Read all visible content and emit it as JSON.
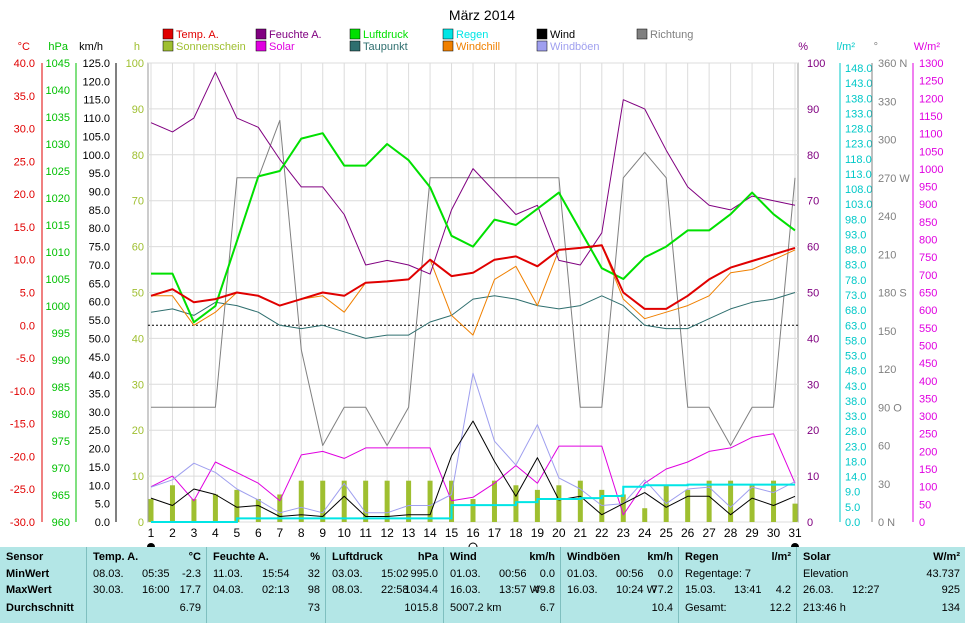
{
  "title": "März 2014",
  "colors": {
    "temp": "#e00000",
    "humidity": "#800080",
    "pressure": "#00e000",
    "rain": "#00e5e5",
    "wind": "#000000",
    "winddir": "#808080",
    "sunshine": "#9fbf30",
    "solar": "#e000e0",
    "dewpoint": "#2f6f6f",
    "windchill": "#f08000",
    "gusts": "#9f9fef",
    "table_bg": "#b3e6e6"
  },
  "axes": {
    "temp": {
      "unit": "°C",
      "ticks": [
        "40.0",
        "35.0",
        "30.0",
        "25.0",
        "20.0",
        "15.0",
        "10.0",
        "5.0",
        "0.0",
        "-5.0",
        "-10.0",
        "-15.0",
        "-20.0",
        "-25.0",
        "-30.0"
      ]
    },
    "pressure": {
      "unit": "hPa",
      "ticks": [
        "1045",
        "1040",
        "1035",
        "1030",
        "1025",
        "1020",
        "1015",
        "1010",
        "1005",
        "1000",
        "995",
        "990",
        "985",
        "980",
        "975",
        "970",
        "965",
        "960"
      ]
    },
    "wind": {
      "unit": "km/h",
      "ticks": [
        "125.0",
        "120.0",
        "115.0",
        "110.0",
        "105.0",
        "100.0",
        "95.0",
        "90.0",
        "85.0",
        "80.0",
        "75.0",
        "70.0",
        "65.0",
        "60.0",
        "55.0",
        "50.0",
        "45.0",
        "40.0",
        "35.0",
        "30.0",
        "25.0",
        "20.0",
        "15.0",
        "10.0",
        "5.0",
        "0.0"
      ]
    },
    "sunshine": {
      "unit": "h",
      "ticks": [
        "100",
        "90",
        "80",
        "70",
        "60",
        "50",
        "40",
        "30",
        "20",
        "10",
        "0"
      ]
    },
    "humidity": {
      "unit": "%",
      "ticks": [
        "100",
        "90",
        "80",
        "70",
        "60",
        "50",
        "40",
        "30",
        "20",
        "10",
        "0"
      ]
    },
    "rain": {
      "unit": "l/m²",
      "ticks": [
        "148.0",
        "143.0",
        "138.0",
        "133.0",
        "128.0",
        "123.0",
        "118.0",
        "113.0",
        "108.0",
        "103.0",
        "98.0",
        "93.0",
        "88.0",
        "83.0",
        "78.0",
        "73.0",
        "68.0",
        "63.0",
        "58.0",
        "53.0",
        "48.0",
        "43.0",
        "38.0",
        "33.0",
        "28.0",
        "23.0",
        "18.0",
        "14.0",
        "9.0",
        "5.0",
        "0.0"
      ]
    },
    "direction": {
      "unit": "°",
      "ticks": [
        "360 N",
        "330",
        "300",
        "270 W",
        "240",
        "210",
        "180 S",
        "150",
        "120",
        "90 O",
        "60",
        "30",
        "0 N"
      ]
    },
    "solar": {
      "unit": "W/m²",
      "ticks": [
        "1300",
        "1250",
        "1200",
        "1150",
        "1100",
        "1050",
        "1000",
        "950",
        "900",
        "850",
        "800",
        "750",
        "700",
        "650",
        "600",
        "550",
        "500",
        "450",
        "400",
        "350",
        "300",
        "250",
        "200",
        "150",
        "100",
        "50",
        "0"
      ]
    },
    "x_ticks": [
      "1",
      "2",
      "3",
      "4",
      "5",
      "6",
      "7",
      "8",
      "9",
      "10",
      "11",
      "12",
      "13",
      "14",
      "15",
      "16",
      "17",
      "18",
      "19",
      "20",
      "21",
      "22",
      "23",
      "24",
      "25",
      "26",
      "27",
      "28",
      "29",
      "30",
      "31"
    ]
  },
  "legend": [
    {
      "label": "Temp. A.",
      "color": "#e00000"
    },
    {
      "label": "Feuchte A.",
      "color": "#800080"
    },
    {
      "label": "Luftdruck",
      "color": "#00e000"
    },
    {
      "label": "Regen",
      "color": "#00e5e5"
    },
    {
      "label": "Wind",
      "color": "#000000"
    },
    {
      "label": "Richtung",
      "color": "#808080"
    },
    {
      "label": "Sonnenschein",
      "color": "#9fbf30"
    },
    {
      "label": "Solar",
      "color": "#e000e0"
    },
    {
      "label": "Taupunkt",
      "color": "#2f6f6f"
    },
    {
      "label": "Windchill",
      "color": "#f08000"
    },
    {
      "label": "Windböen",
      "color": "#9f9fef"
    }
  ],
  "chart_data": {
    "type": "line",
    "title": "März 2014",
    "x": [
      1,
      2,
      3,
      4,
      5,
      6,
      7,
      8,
      9,
      10,
      11,
      12,
      13,
      14,
      15,
      16,
      17,
      18,
      19,
      20,
      21,
      22,
      23,
      24,
      25,
      26,
      27,
      28,
      29,
      30,
      31
    ],
    "series": [
      {
        "name": "Temp. A.",
        "unit": "°C",
        "values": [
          4.5,
          5.5,
          3.5,
          4.0,
          5.0,
          4.5,
          3.0,
          4.0,
          5.0,
          4.5,
          6.5,
          6.7,
          7.0,
          10.0,
          7.5,
          8.0,
          10.0,
          10.5,
          9.0,
          11.5,
          11.8,
          12.2,
          5.0,
          2.5,
          2.5,
          4.5,
          7.0,
          8.8,
          9.8,
          10.8,
          11.8
        ]
      },
      {
        "name": "Feuchte A.",
        "unit": "%",
        "values": [
          87,
          85,
          88,
          98,
          88,
          86,
          79,
          73,
          73,
          67,
          56,
          57,
          56,
          54,
          68,
          77,
          72,
          67,
          69,
          57,
          56,
          63,
          92,
          90,
          81,
          73,
          69,
          68,
          71,
          70,
          69
        ]
      },
      {
        "name": "Luftdruck",
        "unit": "hPa",
        "values": [
          1006,
          1006,
          997,
          1000,
          1012,
          1024,
          1025,
          1031,
          1032,
          1026,
          1026,
          1030,
          1027,
          1022,
          1013,
          1011,
          1016,
          1015,
          1018,
          1021,
          1014,
          1007,
          1005,
          1009,
          1011,
          1014,
          1014,
          1017,
          1021,
          1017,
          1014
        ]
      },
      {
        "name": "Regen",
        "unit": "l/m²",
        "values": [
          0,
          0,
          0,
          0,
          1.2,
          1.2,
          1.2,
          1.2,
          1.2,
          1.2,
          1.2,
          1.2,
          1.2,
          1.2,
          5.5,
          5.5,
          5.5,
          6.5,
          7.5,
          7.5,
          7.8,
          8.5,
          11.5,
          12.0,
          12.0,
          12.2,
          12.2,
          12.2,
          12.2,
          12.2,
          12.2
        ]
      },
      {
        "name": "Wind",
        "unit": "km/h",
        "values": [
          6.5,
          4.5,
          9.0,
          7.5,
          4.0,
          4.5,
          1.5,
          2.0,
          1.5,
          7.0,
          1.5,
          1.5,
          2.0,
          2.0,
          18.0,
          27.5,
          16.5,
          7.0,
          17.5,
          6.0,
          7.0,
          2.0,
          5.0,
          8.0,
          4.0,
          7.0,
          7.0,
          2.0,
          6.5,
          4.5,
          7.0
        ]
      },
      {
        "name": "Windböen",
        "unit": "km/h",
        "values": [
          9.5,
          11.5,
          16.0,
          13.5,
          9.0,
          6.0,
          2.5,
          4.0,
          2.5,
          10.5,
          2.5,
          2.5,
          4.5,
          4.5,
          7.5,
          40.5,
          22.0,
          15.5,
          26.5,
          12.0,
          9.0,
          4.5,
          5.0,
          11.5,
          5.0,
          9.0,
          9.5,
          4.0,
          9.5,
          8.0,
          11.0
        ]
      },
      {
        "name": "Taupunkt",
        "unit": "°C",
        "values": [
          2.0,
          2.5,
          1.5,
          3.5,
          3.0,
          2.0,
          0.0,
          -0.5,
          0.0,
          -1.0,
          -2.0,
          -1.5,
          -1.5,
          0.5,
          1.5,
          4.0,
          4.5,
          4.0,
          3.0,
          2.5,
          3.0,
          4.5,
          3.0,
          0.0,
          -0.5,
          -0.5,
          1.0,
          2.5,
          3.5,
          4.0,
          5.0
        ]
      },
      {
        "name": "Windchill",
        "unit": "°C",
        "values": [
          4.5,
          4.5,
          0.0,
          2.0,
          5.0,
          4.5,
          3.0,
          4.0,
          4.5,
          2.0,
          6.5,
          6.7,
          7.0,
          10.0,
          1.5,
          -1.5,
          7.0,
          9.0,
          3.0,
          11.5,
          11.8,
          12.2,
          4.0,
          1.0,
          2.0,
          3.0,
          4.5,
          8.0,
          8.5,
          10.0,
          11.5
        ]
      },
      {
        "name": "Richtung",
        "unit": "°",
        "values": [
          90,
          90,
          90,
          90,
          270,
          270,
          315,
          135,
          60,
          90,
          90,
          60,
          90,
          270,
          270,
          270,
          270,
          270,
          270,
          270,
          90,
          90,
          270,
          290,
          270,
          90,
          90,
          60,
          90,
          90,
          270
        ]
      },
      {
        "name": "Sonnenschein",
        "unit": "h",
        "values": [
          5,
          8,
          5,
          6,
          7,
          5,
          6,
          9,
          9,
          9,
          9,
          9,
          9,
          9,
          9,
          5,
          9,
          8,
          7,
          8,
          9,
          7,
          6,
          3,
          8,
          7,
          9,
          9,
          8,
          9,
          4
        ]
      },
      {
        "name": "Solar",
        "unit": "W/m²",
        "values": [
          100,
          130,
          60,
          170,
          140,
          110,
          60,
          190,
          200,
          180,
          210,
          210,
          210,
          210,
          60,
          70,
          110,
          160,
          110,
          215,
          215,
          215,
          20,
          110,
          150,
          170,
          200,
          210,
          240,
          250,
          110
        ]
      }
    ],
    "reference_line": {
      "series": "Temp. A.",
      "value": 0
    },
    "axis_ranges": {
      "temp": [
        -30,
        40
      ],
      "pressure": [
        960,
        1045
      ],
      "wind": [
        0,
        125
      ],
      "sunshine": [
        0,
        100
      ],
      "humidity": [
        0,
        100
      ],
      "rain": [
        0,
        150
      ],
      "direction": [
        0,
        360
      ],
      "solar": [
        0,
        1300
      ]
    },
    "grid": true,
    "legend_position": "top"
  },
  "table": {
    "row_labels": [
      "Sensor",
      "MinWert",
      "MaxWert",
      "Durchschnitt"
    ],
    "columns": [
      {
        "header": "Temp. A.",
        "unit": "°C",
        "rows": [
          [
            "08.03.",
            "05:35",
            "-2.3"
          ],
          [
            "30.03.",
            "16:00",
            "17.7"
          ],
          [
            "",
            "",
            "6.79"
          ]
        ]
      },
      {
        "header": "Feuchte A.",
        "unit": "%",
        "rows": [
          [
            "11.03.",
            "15:54",
            "32"
          ],
          [
            "04.03.",
            "02:13",
            "98"
          ],
          [
            "",
            "",
            "73"
          ]
        ]
      },
      {
        "header": "Luftdruck",
        "unit": "hPa",
        "rows": [
          [
            "03.03.",
            "15:02",
            "995.0"
          ],
          [
            "08.03.",
            "22:58",
            "1034.4"
          ],
          [
            "",
            "",
            "1015.8"
          ]
        ]
      },
      {
        "header": "Wind",
        "unit": "km/h",
        "rows": [
          [
            "01.03.",
            "00:56",
            "0.0"
          ],
          [
            "16.03.",
            "13:57 W",
            "49.8"
          ],
          [
            "5007.2 km",
            "",
            "6.7"
          ]
        ]
      },
      {
        "header": "Windböen",
        "unit": "km/h",
        "rows": [
          [
            "01.03.",
            "00:56",
            "0.0"
          ],
          [
            "16.03.",
            "10:24 W",
            "77.2"
          ],
          [
            "",
            "",
            "10.4"
          ]
        ]
      },
      {
        "header": "Regen",
        "unit": "l/m²",
        "rows": [
          [
            "Regentage: 7",
            "",
            ""
          ],
          [
            "15.03.",
            "13:41",
            "4.2"
          ],
          [
            "Gesamt:",
            "",
            "12.2"
          ]
        ]
      },
      {
        "header": "Solar",
        "unit": "W/m²",
        "rows": [
          [
            "Elevation",
            "",
            "43.737"
          ],
          [
            "26.03.",
            "12:27",
            "925"
          ],
          [
            "213:46 h",
            "",
            "134"
          ]
        ]
      }
    ]
  }
}
